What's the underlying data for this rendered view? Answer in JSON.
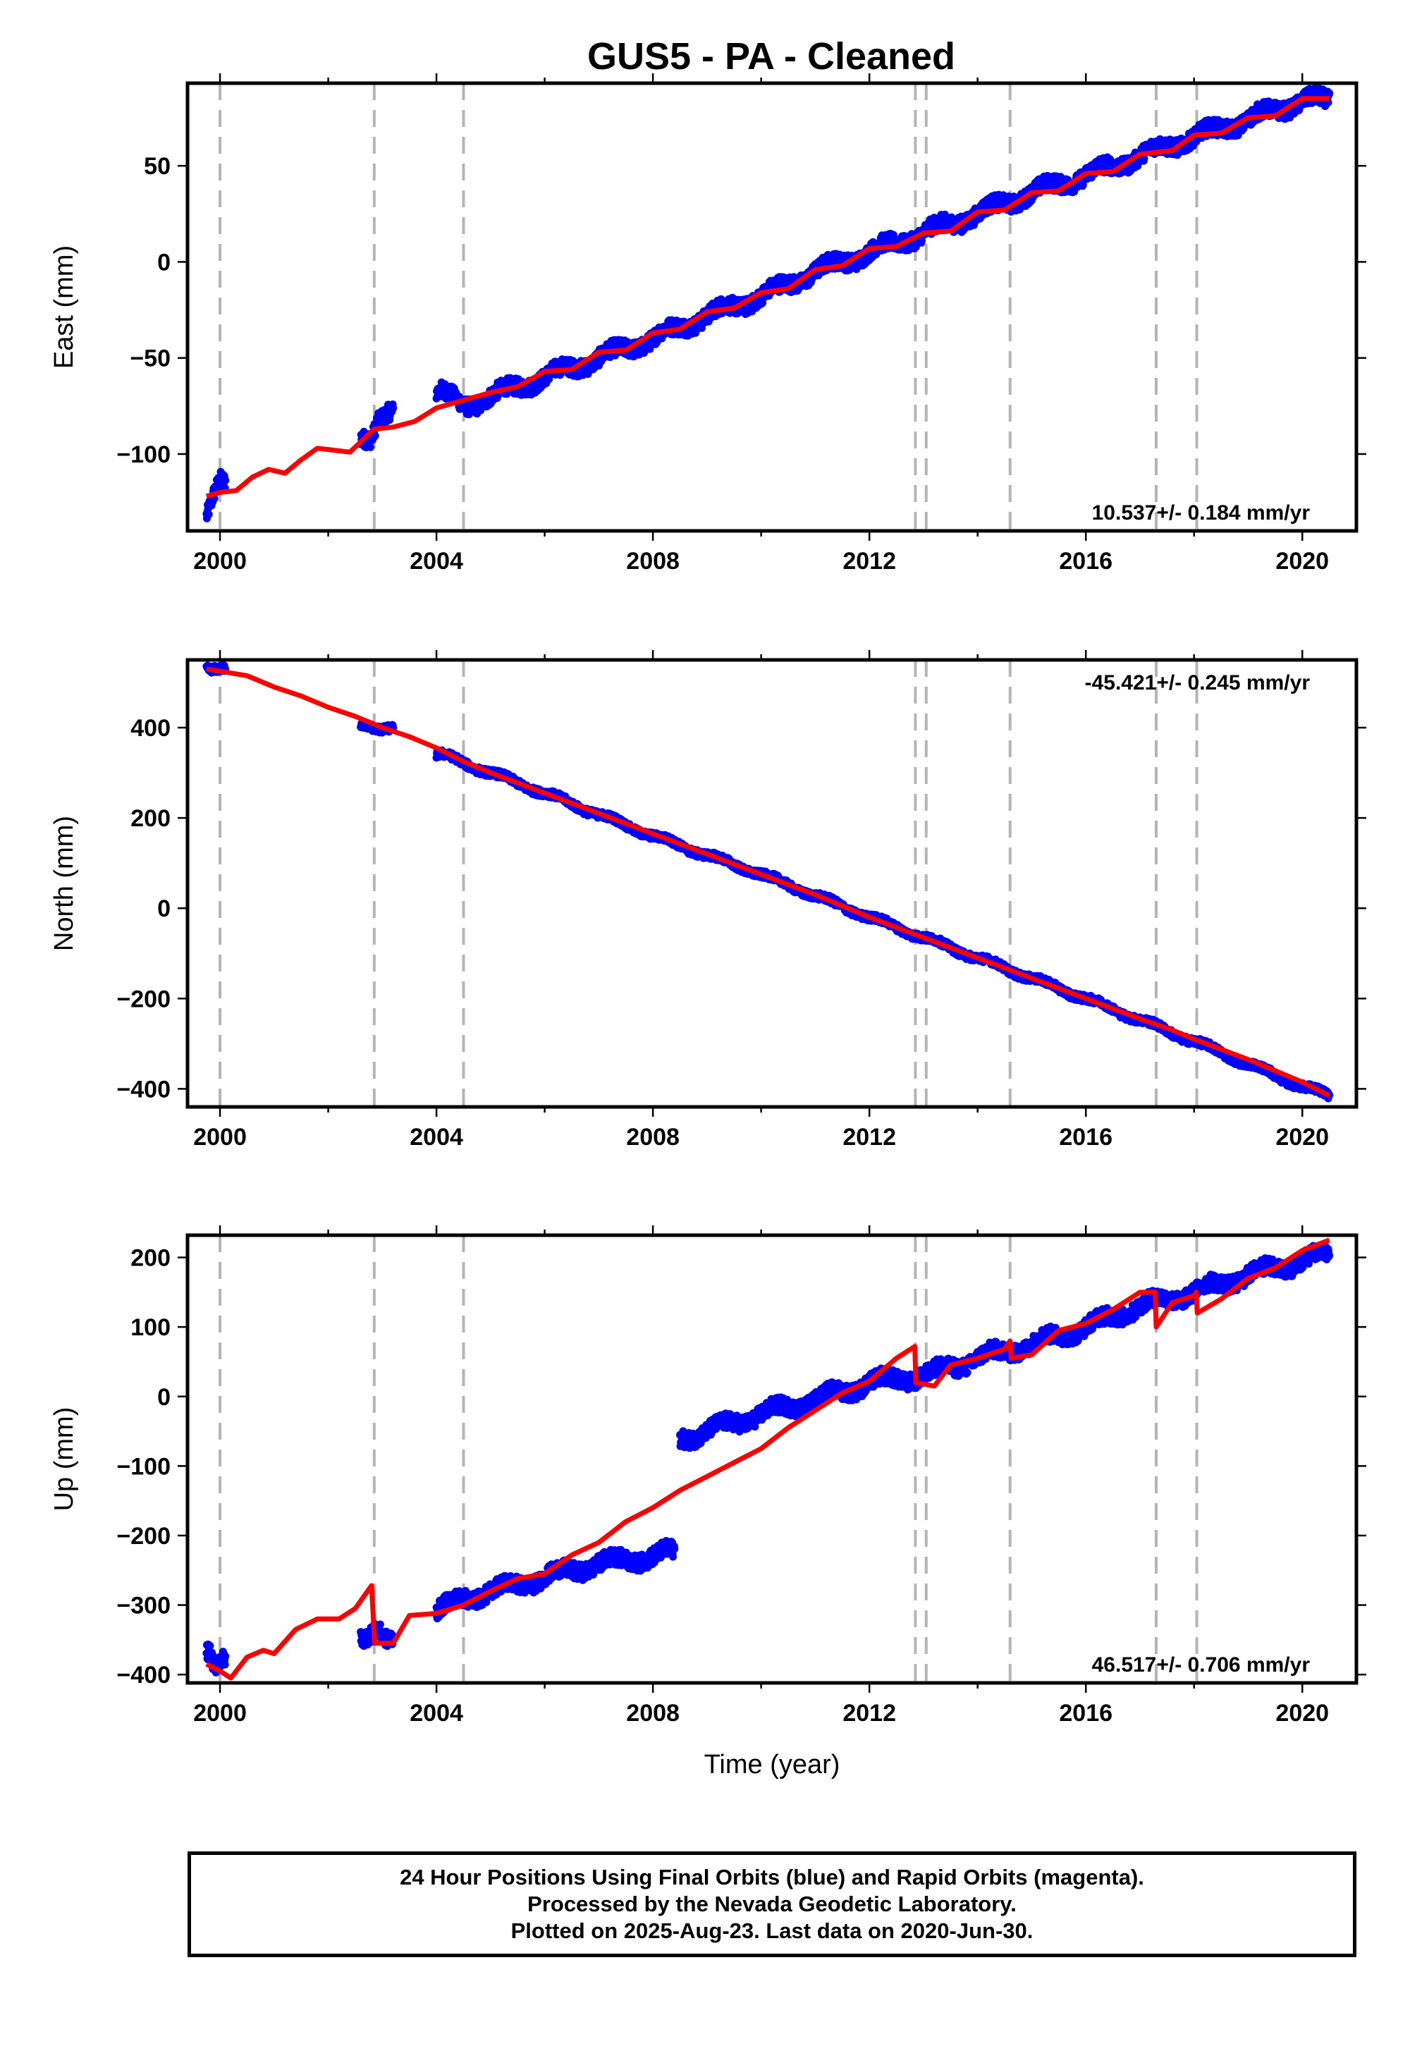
{
  "title": "GUS5  - PA - Cleaned",
  "footer": {
    "line1": "24 Hour Positions Using Final Orbits (blue) and Rapid Orbits (magenta).",
    "line2": "Processed by the Nevada Geodetic Laboratory.",
    "line3": "Plotted on 2025-Aug-23. Last data on 2020-Jun-30."
  },
  "colors": {
    "observations": "#0000ff",
    "model": "#ff0000",
    "event_lines": "#b4b4b4"
  },
  "chart_data": [
    {
      "type": "scatter",
      "name": "east",
      "ylabel": "East (mm)",
      "xlim": [
        1999.4,
        2021.0
      ],
      "ylim": [
        -140,
        93
      ],
      "xticks": [
        2000,
        2004,
        2008,
        2012,
        2016,
        2020
      ],
      "yticks": [
        -100,
        -50,
        0,
        50
      ],
      "rate_label": "10.537+/- 0.184 mm/yr",
      "event_lines": [
        2000.0,
        2002.85,
        2004.5,
        2012.85,
        2013.05,
        2014.6,
        2017.3,
        2018.05
      ],
      "observations_segments": [
        [
          1999.75,
          2000.1
        ],
        [
          2002.6,
          2003.2
        ],
        [
          2004.0,
          2020.5
        ]
      ],
      "observations_points": [
        [
          1999.75,
          -130
        ],
        [
          1999.82,
          -124
        ],
        [
          1999.9,
          -118
        ],
        [
          2000.0,
          -113
        ],
        [
          2000.1,
          -116
        ],
        [
          2002.55,
          -89
        ],
        [
          2002.55,
          -106
        ],
        [
          2002.8,
          -90
        ],
        [
          2002.9,
          -82
        ],
        [
          2003.1,
          -80
        ],
        [
          2004.1,
          -68
        ],
        [
          2004.5,
          -75
        ],
        [
          2005.0,
          -70
        ],
        [
          2006.0,
          -60
        ],
        [
          2007.0,
          -50
        ],
        [
          2008.0,
          -40
        ],
        [
          2009.0,
          -28
        ],
        [
          2010.0,
          -18
        ],
        [
          2011.0,
          -5
        ],
        [
          2012.0,
          5
        ],
        [
          2013.0,
          15
        ],
        [
          2014.0,
          25
        ],
        [
          2015.0,
          36
        ],
        [
          2016.0,
          45
        ],
        [
          2017.0,
          55
        ],
        [
          2018.0,
          65
        ],
        [
          2019.0,
          74
        ],
        [
          2020.0,
          84
        ],
        [
          2020.5,
          84
        ]
      ],
      "model_x": [
        1999.75,
        2000.0,
        2000.3,
        2000.6,
        2000.9,
        2001.2,
        2001.5,
        2001.8,
        2002.1,
        2002.4,
        2002.85,
        2003.2,
        2003.6,
        2004.0,
        2004.5,
        2005.0,
        2005.5,
        2006.0,
        2006.5,
        2007.0,
        2007.5,
        2008.0,
        2008.5,
        2009.0,
        2009.5,
        2010.0,
        2010.5,
        2011.0,
        2011.5,
        2012.0,
        2012.5,
        2013.0,
        2013.5,
        2014.0,
        2014.5,
        2015.0,
        2015.5,
        2016.0,
        2016.5,
        2017.0,
        2017.3,
        2017.6,
        2018.0,
        2018.5,
        2019.0,
        2019.5,
        2020.0,
        2020.5
      ],
      "model_y": [
        -122,
        -120,
        -119,
        -112,
        -108,
        -110,
        -103,
        -97,
        -98,
        -99,
        -87,
        -86,
        -83,
        -76,
        -72,
        -68,
        -65,
        -57,
        -56,
        -47,
        -46,
        -37,
        -35,
        -26,
        -24,
        -16,
        -14,
        -4,
        -2,
        7,
        8,
        15,
        16,
        26,
        27,
        36,
        37,
        46,
        47,
        56,
        57,
        58,
        66,
        67,
        75,
        76,
        85,
        85
      ]
    },
    {
      "type": "scatter",
      "name": "north",
      "ylabel": "North (mm)",
      "xlim": [
        1999.4,
        2021.0
      ],
      "ylim": [
        -440,
        550
      ],
      "xticks": [
        2000,
        2004,
        2008,
        2012,
        2016,
        2020
      ],
      "yticks": [
        -400,
        -200,
        0,
        200,
        400
      ],
      "rate_label": "-45.421+/- 0.245 mm/yr",
      "event_lines": [
        2000.0,
        2002.85,
        2004.5,
        2012.85,
        2013.05,
        2014.6,
        2017.3,
        2018.05
      ],
      "observations_segments": [
        [
          1999.75,
          2000.1
        ],
        [
          2002.6,
          2003.2
        ],
        [
          2004.0,
          2020.5
        ]
      ],
      "observations_points": [
        [
          1999.75,
          535
        ],
        [
          2000.0,
          530
        ],
        [
          2002.7,
          410
        ],
        [
          2003.0,
          395
        ],
        [
          2004.1,
          340
        ],
        [
          2006.0,
          255
        ],
        [
          2008.0,
          160
        ],
        [
          2010.0,
          75
        ],
        [
          2012.0,
          -20
        ],
        [
          2014.0,
          -110
        ],
        [
          2016.0,
          -200
        ],
        [
          2018.0,
          -295
        ],
        [
          2020.0,
          -395
        ],
        [
          2020.5,
          -415
        ]
      ],
      "model_x": [
        1999.75,
        2000.5,
        2001.0,
        2001.5,
        2002.0,
        2002.5,
        2003.0,
        2003.5,
        2004.0,
        2004.5,
        2005.0,
        2006.0,
        2007.0,
        2008.0,
        2009.0,
        2010.0,
        2011.0,
        2012.0,
        2013.0,
        2014.0,
        2015.0,
        2016.0,
        2017.0,
        2017.6,
        2018.0,
        2019.0,
        2020.0,
        2020.5
      ],
      "model_y": [
        530,
        515,
        490,
        470,
        445,
        425,
        400,
        380,
        355,
        325,
        300,
        255,
        210,
        165,
        120,
        75,
        30,
        -20,
        -65,
        -110,
        -155,
        -200,
        -245,
        -270,
        -290,
        -335,
        -385,
        -415
      ]
    },
    {
      "type": "scatter",
      "name": "up",
      "ylabel": "Up (mm)",
      "xlabel": "Time (year)",
      "xlim": [
        1999.4,
        2021.0
      ],
      "ylim": [
        -412,
        232
      ],
      "xticks": [
        2000,
        2004,
        2008,
        2012,
        2016,
        2020
      ],
      "yticks": [
        -400,
        -300,
        -200,
        -100,
        0,
        100,
        200
      ],
      "rate_label": "46.517+/- 0.706 mm/yr",
      "event_lines": [
        2000.0,
        2002.85,
        2004.5,
        2012.85,
        2013.05,
        2014.6,
        2017.3,
        2018.05
      ],
      "observations_segments": [
        [
          1999.75,
          2000.1
        ],
        [
          2002.6,
          2003.2
        ],
        [
          2004.0,
          2008.4
        ],
        [
          2008.5,
          2020.5
        ]
      ],
      "observations_points": [
        [
          1999.8,
          -360
        ],
        [
          1999.9,
          -385
        ],
        [
          2000.0,
          -380
        ],
        [
          2002.6,
          -345
        ],
        [
          2002.9,
          -330
        ],
        [
          2003.1,
          -355
        ],
        [
          2004.0,
          -310
        ],
        [
          2004.5,
          -290
        ],
        [
          2005.0,
          -280
        ],
        [
          2006.0,
          -260
        ],
        [
          2007.0,
          -240
        ],
        [
          2008.0,
          -230
        ],
        [
          2008.3,
          -225
        ],
        [
          2008.5,
          -60
        ],
        [
          2009.0,
          -50
        ],
        [
          2010.0,
          -25
        ],
        [
          2011.0,
          -5
        ],
        [
          2012.0,
          20
        ],
        [
          2013.0,
          30
        ],
        [
          2014.0,
          55
        ],
        [
          2015.0,
          75
        ],
        [
          2016.0,
          100
        ],
        [
          2017.0,
          130
        ],
        [
          2017.5,
          140
        ],
        [
          2018.0,
          150
        ],
        [
          2019.0,
          175
        ],
        [
          2020.0,
          195
        ],
        [
          2020.5,
          205
        ]
      ],
      "model_x": [
        1999.75,
        2000.0,
        2000.2,
        2000.5,
        2000.8,
        2001.0,
        2001.4,
        2001.8,
        2002.2,
        2002.5,
        2002.8,
        2002.86,
        2003.2,
        2003.5,
        2004.0,
        2004.5,
        2005.0,
        2005.5,
        2006.0,
        2006.5,
        2007.0,
        2007.5,
        2008.0,
        2008.5,
        2009.0,
        2009.5,
        2010.0,
        2010.5,
        2011.0,
        2011.5,
        2012.0,
        2012.5,
        2012.84,
        2012.86,
        2013.2,
        2013.5,
        2014.0,
        2014.5,
        2014.6,
        2014.62,
        2015.0,
        2015.5,
        2016.0,
        2016.5,
        2017.0,
        2017.28,
        2017.3,
        2017.6,
        2018.0,
        2018.04,
        2018.06,
        2018.5,
        2019.0,
        2019.5,
        2020.0,
        2020.5
      ],
      "model_y": [
        -385,
        -395,
        -405,
        -375,
        -365,
        -370,
        -335,
        -320,
        -320,
        -305,
        -272,
        -355,
        -355,
        -315,
        -312,
        -300,
        -280,
        -262,
        -255,
        -228,
        -210,
        -180,
        -160,
        -135,
        -115,
        -95,
        -75,
        -45,
        -20,
        5,
        22,
        55,
        72,
        20,
        15,
        45,
        55,
        68,
        80,
        55,
        60,
        95,
        105,
        125,
        150,
        150,
        100,
        135,
        145,
        150,
        120,
        140,
        170,
        185,
        210,
        225
      ]
    }
  ]
}
